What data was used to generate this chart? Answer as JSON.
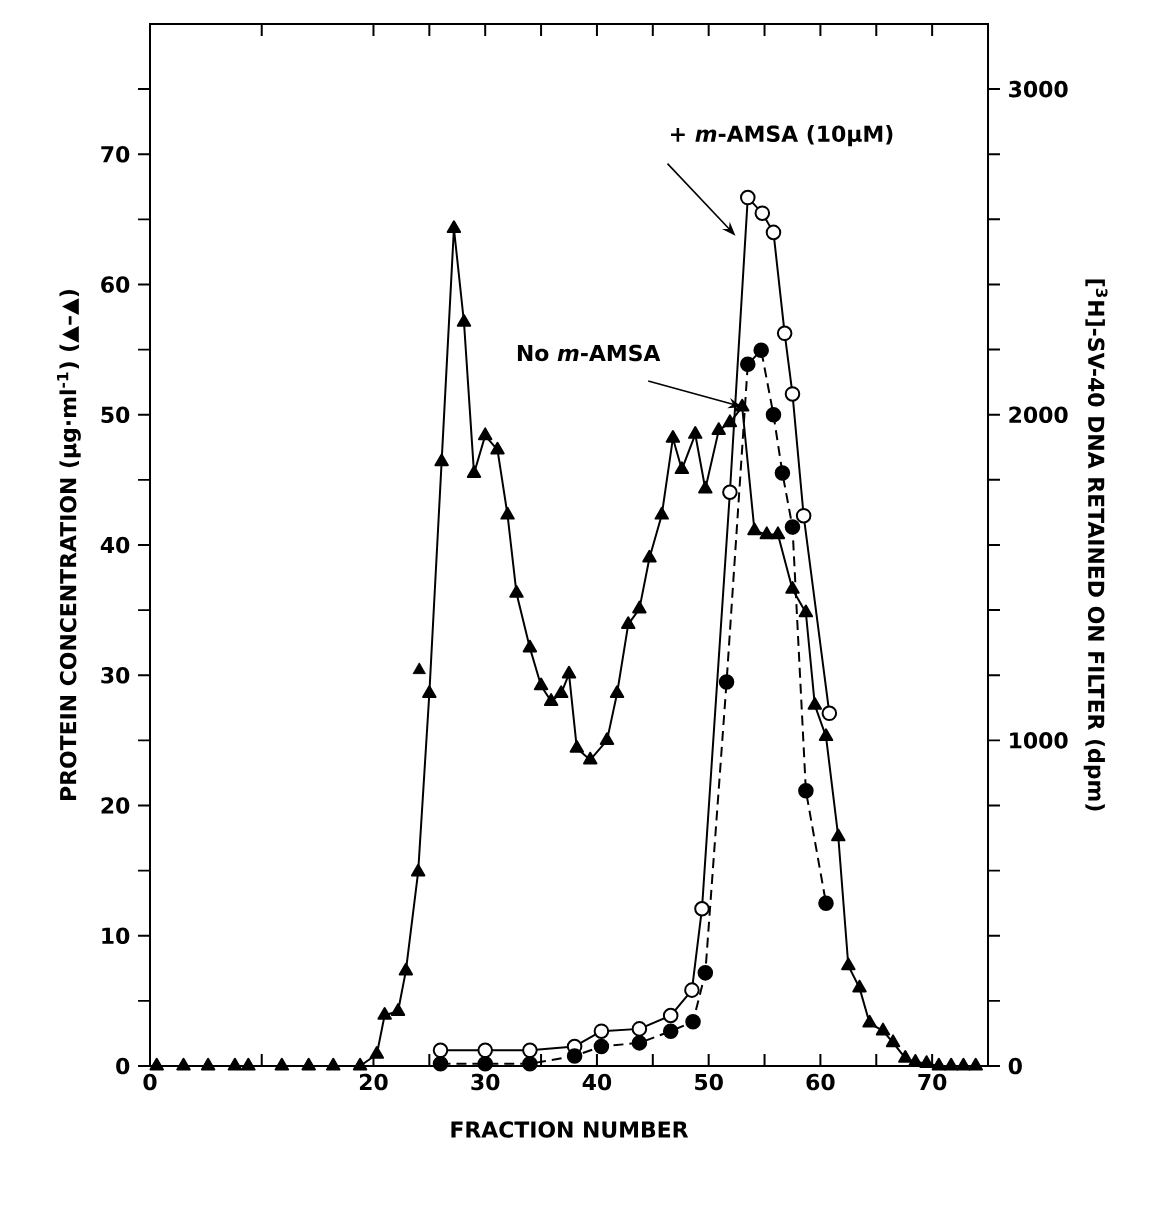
{
  "chart_data": {
    "type": "line",
    "xlabel": "FRACTION NUMBER",
    "ylabel": "PROTEIN CONCENTRATION (μg·ml$^{-1}$) (▲–▲)",
    "y2label": "[$^{3}$H]-SV-40 DNA RETAINED ON FILTER (dpm)",
    "xlim": [
      0,
      75
    ],
    "xticks": [
      0,
      {
        "value": 10,
        "label": null
      },
      20,
      {
        "value": 25,
        "label": null
      },
      30,
      {
        "value": 35,
        "label": null
      },
      40,
      {
        "value": 45,
        "label": null
      },
      50,
      {
        "value": 55,
        "label": null
      },
      60,
      {
        "value": 65,
        "label": null
      },
      70
    ],
    "ylim": [
      0,
      80
    ],
    "yticks": [
      0,
      {
        "value": 5,
        "label": null
      },
      10,
      {
        "value": 15,
        "label": null
      },
      20,
      {
        "value": 25,
        "label": null
      },
      30,
      {
        "value": 35,
        "label": null
      },
      40,
      {
        "value": 45,
        "label": null
      },
      50,
      {
        "value": 55,
        "label": null
      },
      60,
      {
        "value": 65,
        "label": null
      },
      70,
      {
        "value": 75,
        "label": null
      }
    ],
    "y2lim": [
      0,
      3200
    ],
    "y2ticks": [
      0,
      {
        "value": 200,
        "label": null
      },
      {
        "value": 400,
        "label": null
      },
      {
        "value": 600,
        "label": null
      },
      {
        "value": 800,
        "label": null
      },
      1000,
      {
        "value": 1200,
        "label": null
      },
      {
        "value": 1400,
        "label": null
      },
      {
        "value": 1600,
        "label": null
      },
      {
        "value": 1800,
        "label": null
      },
      2000,
      {
        "value": 2200,
        "label": null
      },
      {
        "value": 2400,
        "label": null
      },
      {
        "value": 2600,
        "label": null
      },
      {
        "value": 2800,
        "label": null
      },
      3000
    ],
    "series": [
      {
        "color": "#000000",
        "marker": "triangle",
        "line_style": "solid",
        "x": [
          0.6,
          3,
          5.2,
          7.6,
          8.8,
          11.8,
          14.2,
          16.4,
          18.8,
          20.3,
          21,
          22.2,
          22.9,
          24,
          25,
          26.1,
          27.2,
          28.1,
          29,
          30,
          31.1,
          32,
          32.8,
          34,
          35,
          35.9,
          36.8,
          37.5,
          38.2,
          39.4,
          40.9,
          41.8,
          42.8,
          43.8,
          44.7,
          45.8,
          46.8,
          47.6,
          48.8,
          49.7,
          50.9,
          51.9,
          53,
          54.1,
          55.2,
          56.2,
          57.5,
          58.7,
          59.5,
          60.5,
          61.6,
          62.5,
          63.5,
          64.4,
          65.6,
          66.5,
          67.6,
          68.5,
          69.5,
          70.6,
          71.7,
          72.8,
          73.9
        ],
        "values": [
          0,
          0,
          0,
          0,
          0,
          0,
          0,
          0,
          0,
          0.9,
          3.9,
          4.2,
          7.3,
          14.9,
          28.6,
          46.4,
          64.3,
          57.1,
          45.5,
          48.4,
          47.3,
          42.3,
          36.3,
          32.1,
          29.2,
          28.0,
          28.6,
          30.1,
          24.4,
          23.5,
          25.0,
          28.6,
          33.9,
          35.1,
          39.0,
          42.3,
          48.2,
          45.8,
          48.5,
          44.3,
          48.8,
          49.4,
          50.6,
          41.1,
          40.8,
          40.8,
          36.6,
          34.8,
          27.7,
          25.3,
          17.6,
          7.7,
          6.0,
          3.3,
          2.7,
          1.8,
          0.6,
          0.3,
          0.2,
          0,
          0,
          0,
          0
        ]
      },
      {
        "type": "scatter",
        "color": "#000000",
        "marker": "triangle",
        "x": [
          24.1
        ],
        "values": [
          30.4
        ]
      },
      {
        "color": "#000000",
        "marker": "circle",
        "line_style": "solid",
        "axis": "y2",
        "x": [
          26,
          30,
          34,
          38,
          40.4,
          43.8,
          46.6,
          48.5,
          49.4,
          51.9,
          53.5,
          54.8,
          55.8,
          56.8,
          57.5,
          58.5,
          60.8
        ],
        "values": [
          48,
          48,
          48,
          60,
          107,
          114,
          155,
          233,
          483,
          1762,
          2667,
          2619,
          2560,
          2250,
          2064,
          1690,
          1083
        ]
      },
      {
        "color": "#000000",
        "marker": "circle",
        "line_style": "dashed",
        "axis": "y2",
        "x": [
          26,
          30,
          34,
          38,
          40.4,
          43.8,
          46.6,
          48.6,
          49.7,
          51.6,
          53.5,
          54.7,
          55.8,
          56.6,
          57.5,
          58.7,
          60.5
        ],
        "values": [
          7,
          7,
          7,
          31,
          60,
          71,
          107,
          136,
          286,
          1179,
          2155,
          2198,
          2000,
          1821,
          1655,
          845,
          500
        ]
      }
    ],
    "annotations": [
      "+ *m*-AMSA (10μM)",
      {
        "text": "No *m*-AMSA",
        "x": 53,
        "y": 50.6
      }
    ]
  }
}
